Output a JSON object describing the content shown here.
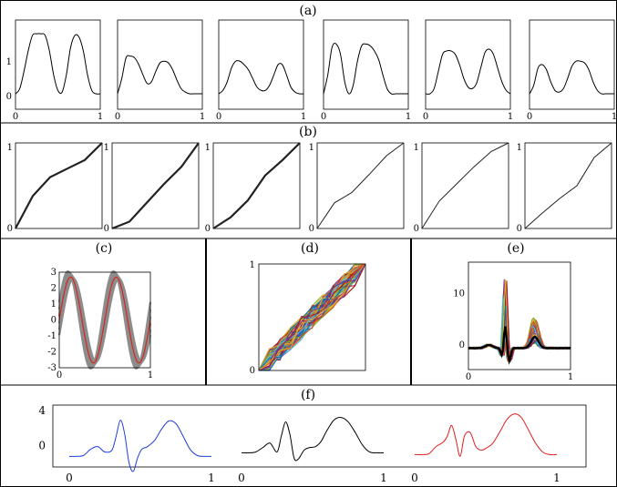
{
  "panel_labels": {
    "a": "(a)",
    "b": "(b)",
    "c": "(c)",
    "d": "(d)",
    "e": "(e)",
    "f": "(f)"
  },
  "chart_data": [
    {
      "panel": "a",
      "type": "line",
      "xlim": [
        0,
        1
      ],
      "ylim": [
        -0.4,
        2.2
      ],
      "xticks": [
        "0",
        "1"
      ],
      "yticks": [
        "0",
        "1"
      ],
      "color": "#000000",
      "curves": [
        {
          "x": [
            0,
            0.05,
            0.1,
            0.15,
            0.2,
            0.25,
            0.3,
            0.35,
            0.4,
            0.45,
            0.5,
            0.55,
            0.6,
            0.65,
            0.7,
            0.75,
            0.8,
            0.85,
            0.9,
            0.95,
            1
          ],
          "y": [
            0.05,
            0.2,
            0.7,
            1.3,
            1.75,
            1.8,
            1.8,
            1.75,
            1.3,
            0.6,
            0.15,
            0.1,
            0.6,
            1.4,
            1.75,
            1.7,
            1.3,
            0.6,
            0.15,
            0.05,
            0.05
          ]
        },
        {
          "x": [
            0,
            0.05,
            0.1,
            0.15,
            0.2,
            0.25,
            0.3,
            0.35,
            0.4,
            0.45,
            0.5,
            0.55,
            0.6,
            0.65,
            0.7,
            0.75,
            0.8,
            0.85,
            0.9,
            0.95,
            1
          ],
          "y": [
            0.05,
            0.5,
            1.1,
            1.15,
            1.1,
            0.9,
            0.6,
            0.35,
            0.4,
            0.7,
            0.95,
            1.0,
            0.95,
            0.75,
            0.45,
            0.2,
            0.1,
            0.05,
            0.05,
            0.05,
            0.05
          ]
        },
        {
          "x": [
            0,
            0.05,
            0.1,
            0.15,
            0.2,
            0.25,
            0.3,
            0.35,
            0.4,
            0.45,
            0.5,
            0.55,
            0.6,
            0.65,
            0.7,
            0.75,
            0.8,
            0.85,
            0.9,
            0.95,
            1
          ],
          "y": [
            0.05,
            0.15,
            0.4,
            0.8,
            1.0,
            1.0,
            0.9,
            0.75,
            0.5,
            0.25,
            0.15,
            0.15,
            0.3,
            0.6,
            0.9,
            0.9,
            0.6,
            0.25,
            0.1,
            0.05,
            0.05
          ]
        },
        {
          "x": [
            0,
            0.05,
            0.1,
            0.15,
            0.2,
            0.25,
            0.3,
            0.35,
            0.4,
            0.45,
            0.5,
            0.55,
            0.6,
            0.65,
            0.7,
            0.75,
            0.8,
            0.85,
            0.9,
            0.95,
            1
          ],
          "y": [
            0.05,
            0.6,
            1.4,
            1.5,
            1.2,
            0.4,
            0.05,
            0.3,
            1.0,
            1.45,
            1.5,
            1.45,
            1.3,
            1.05,
            0.6,
            0.2,
            0.05,
            0.05,
            0.05,
            0.05,
            0.05
          ]
        },
        {
          "x": [
            0,
            0.05,
            0.1,
            0.15,
            0.2,
            0.25,
            0.3,
            0.35,
            0.4,
            0.45,
            0.5,
            0.55,
            0.6,
            0.65,
            0.7,
            0.75,
            0.8,
            0.85,
            0.9,
            0.95,
            1
          ],
          "y": [
            0.05,
            0.05,
            0.2,
            0.7,
            1.2,
            1.3,
            1.3,
            1.2,
            0.9,
            0.5,
            0.25,
            0.2,
            0.35,
            0.8,
            1.25,
            1.35,
            1.2,
            0.8,
            0.4,
            0.15,
            0.05
          ]
        },
        {
          "x": [
            0,
            0.05,
            0.1,
            0.15,
            0.2,
            0.25,
            0.3,
            0.35,
            0.4,
            0.45,
            0.5,
            0.55,
            0.6,
            0.65,
            0.7,
            0.75,
            0.8,
            0.85,
            0.9,
            0.95,
            1
          ],
          "y": [
            0.05,
            0.3,
            0.8,
            0.9,
            0.75,
            0.4,
            0.15,
            0.1,
            0.2,
            0.5,
            0.85,
            1.0,
            1.0,
            0.95,
            0.75,
            0.4,
            0.15,
            0.05,
            0.05,
            0.05,
            0.05
          ]
        }
      ]
    },
    {
      "panel": "b",
      "type": "line",
      "xlim": [
        0,
        1
      ],
      "ylim": [
        0,
        1
      ],
      "xticks": [],
      "yticks": [
        "0",
        "1"
      ],
      "curves": [
        {
          "x": [
            0,
            0.2,
            0.4,
            0.6,
            0.8,
            1
          ],
          "y": [
            0,
            0.38,
            0.6,
            0.7,
            0.8,
            1
          ]
        },
        {
          "x": [
            0,
            0.2,
            0.4,
            0.6,
            0.8,
            1
          ],
          "y": [
            0,
            0.08,
            0.3,
            0.52,
            0.72,
            1
          ]
        },
        {
          "x": [
            0,
            0.2,
            0.4,
            0.6,
            0.8,
            1
          ],
          "y": [
            0,
            0.13,
            0.33,
            0.62,
            0.8,
            1
          ]
        },
        {
          "x": [
            0,
            0.2,
            0.4,
            0.6,
            0.8,
            1
          ],
          "y": [
            0,
            0.3,
            0.42,
            0.63,
            0.85,
            1
          ]
        },
        {
          "x": [
            0,
            0.2,
            0.4,
            0.6,
            0.8,
            1
          ],
          "y": [
            0,
            0.32,
            0.52,
            0.72,
            0.9,
            1
          ]
        },
        {
          "x": [
            0,
            0.2,
            0.4,
            0.6,
            0.8,
            1
          ],
          "y": [
            0,
            0.18,
            0.35,
            0.5,
            0.83,
            1
          ]
        }
      ]
    },
    {
      "panel": "c",
      "type": "line",
      "xlim": [
        0,
        1
      ],
      "ylim": [
        -3,
        3
      ],
      "xticks": [
        "0",
        "1"
      ],
      "yticks": [
        "3",
        "2",
        "1",
        "0",
        "-1",
        "-2",
        "-3"
      ],
      "function": "y = 3 sin(4 pi x)",
      "gray_amplitudes": [
        2.6,
        2.7,
        2.8,
        2.9,
        3.0,
        3.05
      ],
      "red_amplitude": 2.7,
      "colors": {
        "gray": "#8c8c8c",
        "red": "#d6281f"
      }
    },
    {
      "panel": "d",
      "type": "line",
      "xlim": [
        0,
        1
      ],
      "ylim": [
        0,
        1
      ],
      "xticks": [],
      "yticks": [
        "1",
        "0"
      ],
      "note": "many random monotone warping functions from (0,0) to (1,1)",
      "colors": [
        "#0072bd",
        "#d95319",
        "#edb120",
        "#7e2f8e",
        "#77ac30",
        "#4dbeee",
        "#a2142f"
      ]
    },
    {
      "panel": "e",
      "type": "line",
      "xlim": [
        0,
        1
      ],
      "ylim": [
        -5,
        16
      ],
      "xticks": [
        "0",
        "1"
      ],
      "yticks": [
        "10",
        "0"
      ],
      "note": "many colored ECG-like signals with one thick black mean curve",
      "colors": [
        "#0072bd",
        "#d95319",
        "#edb120",
        "#7e2f8e",
        "#77ac30",
        "#4dbeee",
        "#a2142f"
      ]
    },
    {
      "panel": "f",
      "type": "line",
      "xlim": [
        0,
        1
      ],
      "ylim": [
        -2.5,
        4.5
      ],
      "yticks": [
        "4",
        "0"
      ],
      "xticks": [
        "0",
        "1",
        "0",
        "1",
        "0",
        "1"
      ],
      "series": [
        {
          "color": "#1f3ed8",
          "x": [
            0,
            0.05,
            0.1,
            0.15,
            0.2,
            0.25,
            0.3,
            0.33,
            0.36,
            0.39,
            0.42,
            0.45,
            0.48,
            0.51,
            0.55,
            0.6,
            0.65,
            0.7,
            0.75,
            0.8,
            0.85,
            0.9,
            0.95,
            1
          ],
          "y": [
            -1.3,
            -1.3,
            -1.2,
            -0.5,
            -0.2,
            -0.8,
            -0.6,
            1.0,
            2.8,
            1.2,
            -2.0,
            -3.0,
            -1.5,
            -0.5,
            -0.2,
            0.5,
            1.8,
            2.7,
            2.4,
            1.0,
            -0.5,
            -1.2,
            -1.3,
            -1.3
          ]
        },
        {
          "color": "#000000",
          "x": [
            0,
            0.05,
            0.1,
            0.15,
            0.2,
            0.25,
            0.28,
            0.31,
            0.34,
            0.37,
            0.4,
            0.44,
            0.48,
            0.52,
            0.56,
            0.6,
            0.65,
            0.7,
            0.75,
            0.8,
            0.85,
            0.9,
            0.95,
            1
          ],
          "y": [
            -0.9,
            -0.9,
            -0.8,
            -0.3,
            0.2,
            -0.8,
            1.0,
            2.6,
            1.2,
            -1.5,
            -1.6,
            -0.6,
            -0.3,
            -0.2,
            0.4,
            1.6,
            2.8,
            3.1,
            2.6,
            1.4,
            0.0,
            -0.8,
            -0.9,
            -0.9
          ]
        },
        {
          "color": "#e21e1e",
          "x": [
            0,
            0.05,
            0.1,
            0.15,
            0.2,
            0.23,
            0.26,
            0.29,
            0.32,
            0.35,
            0.39,
            0.43,
            0.47,
            0.51,
            0.55,
            0.6,
            0.65,
            0.7,
            0.75,
            0.8,
            0.85,
            0.9,
            0.95,
            1
          ],
          "y": [
            -1.1,
            -1.1,
            -1.0,
            -0.2,
            0.3,
            1.0,
            2.2,
            0.6,
            -1.3,
            1.0,
            1.4,
            -0.2,
            -0.6,
            -0.3,
            0.2,
            1.5,
            2.9,
            3.5,
            3.1,
            1.7,
            0.2,
            -0.8,
            -1.1,
            -1.1
          ]
        }
      ]
    }
  ]
}
